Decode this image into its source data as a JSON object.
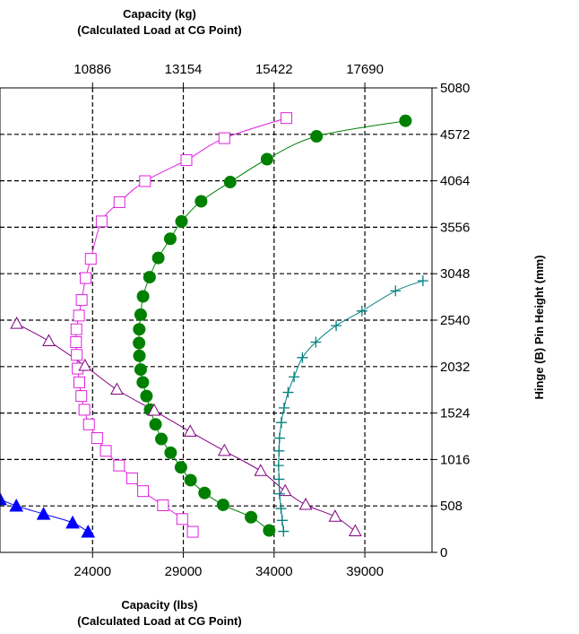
{
  "chart_data": {
    "type": "scatter",
    "title": "",
    "top_axis": {
      "label_line1": "Capacity (kg)",
      "label_line2": "(Calculated Load at CG Point)",
      "ticks": [
        "10886",
        "13154",
        "15422",
        "17690"
      ],
      "tick_values_lbs": [
        24000,
        29000,
        34000,
        39000
      ]
    },
    "bottom_axis": {
      "label_line1": "Capacity (lbs)",
      "label_line2": "(Calculated Load at CG Point)",
      "ticks": [
        "24000",
        "29000",
        "34000",
        "39000"
      ],
      "tick_values": [
        24000,
        29000,
        34000,
        39000
      ]
    },
    "right_axis": {
      "label": "Hinge (B) Pin Height (mm)",
      "ticks": [
        "0",
        "508",
        "1016",
        "1524",
        "2032",
        "2540",
        "3048",
        "3556",
        "4064",
        "4572",
        "5080"
      ],
      "tick_values": [
        0,
        508,
        1016,
        1524,
        2032,
        2540,
        3048,
        3556,
        4064,
        4572,
        5080
      ]
    },
    "xlim": [
      18900,
      42700
    ],
    "ylim": [
      0,
      5080
    ],
    "grid": true,
    "series": [
      {
        "marker": "open-square",
        "color": "#e020e0",
        "points": [
          [
            29520,
            225
          ],
          [
            28940,
            365
          ],
          [
            27880,
            515
          ],
          [
            26780,
            670
          ],
          [
            26180,
            810
          ],
          [
            25460,
            950
          ],
          [
            24730,
            1110
          ],
          [
            24250,
            1250
          ],
          [
            23800,
            1400
          ],
          [
            23550,
            1560
          ],
          [
            23380,
            1710
          ],
          [
            23270,
            1860
          ],
          [
            23180,
            2010
          ],
          [
            23130,
            2160
          ],
          [
            23090,
            2300
          ],
          [
            23110,
            2440
          ],
          [
            23250,
            2590
          ],
          [
            23400,
            2760
          ],
          [
            23620,
            3000
          ],
          [
            23900,
            3210
          ],
          [
            24500,
            3620
          ],
          [
            25480,
            3830
          ],
          [
            26890,
            4060
          ],
          [
            29170,
            4290
          ],
          [
            31260,
            4530
          ],
          [
            34680,
            4750
          ]
        ]
      },
      {
        "marker": "filled-circle",
        "color": "#008000",
        "points": [
          [
            33730,
            240
          ],
          [
            32730,
            385
          ],
          [
            31190,
            520
          ],
          [
            30170,
            650
          ],
          [
            29400,
            790
          ],
          [
            28870,
            930
          ],
          [
            28300,
            1090
          ],
          [
            27790,
            1240
          ],
          [
            27470,
            1400
          ],
          [
            27170,
            1560
          ],
          [
            26970,
            1710
          ],
          [
            26770,
            1860
          ],
          [
            26650,
            2000
          ],
          [
            26580,
            2150
          ],
          [
            26560,
            2290
          ],
          [
            26570,
            2440
          ],
          [
            26650,
            2600
          ],
          [
            26780,
            2800
          ],
          [
            27140,
            3010
          ],
          [
            27620,
            3220
          ],
          [
            28280,
            3430
          ],
          [
            28900,
            3620
          ],
          [
            29980,
            3840
          ],
          [
            31580,
            4050
          ],
          [
            33610,
            4300
          ],
          [
            36340,
            4550
          ],
          [
            41240,
            4720
          ]
        ]
      },
      {
        "marker": "open-triangle",
        "color": "#800080",
        "points": [
          [
            38470,
            230
          ],
          [
            37360,
            390
          ],
          [
            35740,
            520
          ],
          [
            34610,
            670
          ],
          [
            33260,
            890
          ],
          [
            31260,
            1110
          ],
          [
            29380,
            1320
          ],
          [
            27390,
            1550
          ],
          [
            25340,
            1780
          ],
          [
            23580,
            2040
          ],
          [
            21590,
            2310
          ],
          [
            19820,
            2500
          ]
        ]
      },
      {
        "marker": "plus",
        "color": "#008080",
        "points": [
          [
            34520,
            230
          ],
          [
            34450,
            350
          ],
          [
            34380,
            480
          ],
          [
            34300,
            640
          ],
          [
            34270,
            800
          ],
          [
            34250,
            950
          ],
          [
            34270,
            1110
          ],
          [
            34300,
            1250
          ],
          [
            34400,
            1420
          ],
          [
            34550,
            1580
          ],
          [
            34770,
            1750
          ],
          [
            35100,
            1920
          ],
          [
            35560,
            2130
          ],
          [
            36300,
            2300
          ],
          [
            37420,
            2480
          ],
          [
            38840,
            2640
          ],
          [
            40690,
            2860
          ],
          [
            42200,
            2970
          ]
        ]
      },
      {
        "marker": "filled-triangle",
        "color": "#0000ff",
        "points": [
          [
            18900,
            580
          ],
          [
            19800,
            510
          ],
          [
            21300,
            420
          ],
          [
            22900,
            325
          ],
          [
            23750,
            225
          ]
        ]
      }
    ]
  }
}
